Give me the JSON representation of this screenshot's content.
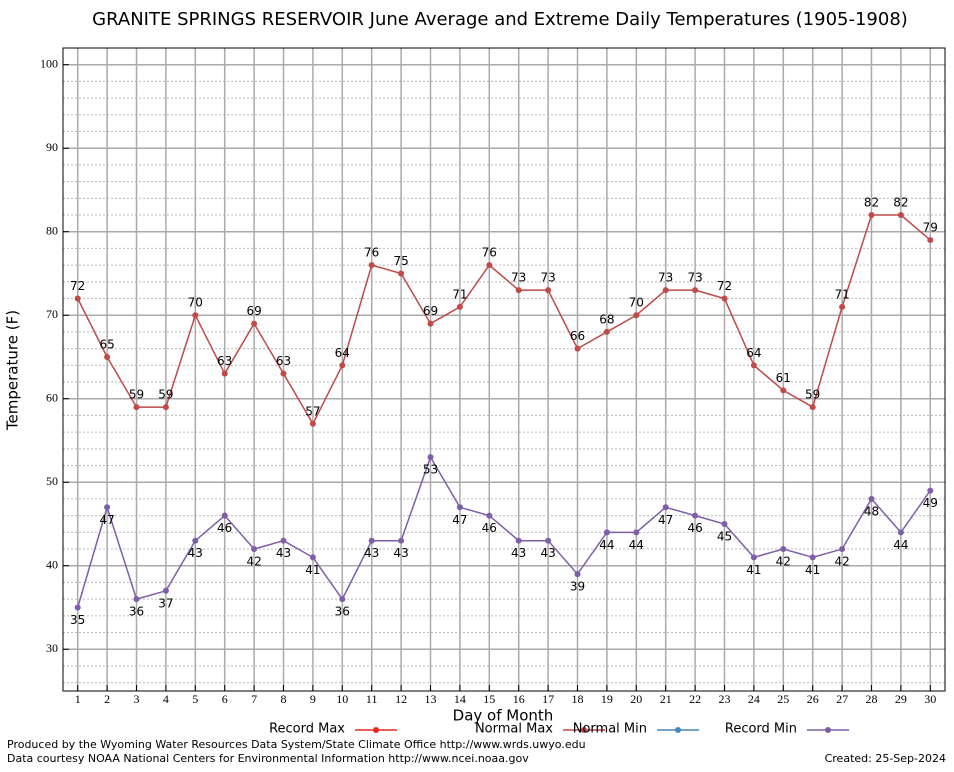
{
  "chart_data": {
    "type": "line",
    "title": "GRANITE SPRINGS RESERVOIR June Average and Extreme Daily Temperatures (1905-1908)",
    "x_label": "Day of Month",
    "y_label": "Temperature (F)",
    "x": [
      1,
      2,
      3,
      4,
      5,
      6,
      7,
      8,
      9,
      10,
      11,
      12,
      13,
      14,
      15,
      16,
      17,
      18,
      19,
      20,
      21,
      22,
      23,
      24,
      25,
      26,
      27,
      28,
      29,
      30
    ],
    "series": [
      {
        "name": "Record Max",
        "color": "#e8281e",
        "values": [
          null,
          null,
          null,
          null,
          null,
          null,
          null,
          null,
          null,
          null,
          null,
          null,
          null,
          null,
          null,
          null,
          null,
          null,
          null,
          null,
          null,
          null,
          null,
          null,
          null,
          null,
          null,
          null,
          null,
          null
        ]
      },
      {
        "name": "Normal Max",
        "color": "#bf4a48",
        "label_side": "above",
        "values": [
          72,
          65,
          59,
          59,
          70,
          63,
          69,
          63,
          57,
          64,
          76,
          75,
          69,
          71,
          76,
          73,
          73,
          66,
          68,
          70,
          73,
          73,
          72,
          64,
          61,
          59,
          71,
          82,
          82,
          79
        ]
      },
      {
        "name": "Normal Min",
        "color": "#4a86b8",
        "values": [
          null,
          null,
          null,
          null,
          null,
          null,
          null,
          null,
          null,
          null,
          null,
          null,
          null,
          null,
          null,
          null,
          null,
          null,
          null,
          null,
          null,
          null,
          null,
          null,
          null,
          null,
          null,
          null,
          null,
          null
        ]
      },
      {
        "name": "Record Min",
        "color": "#7e5ea8",
        "label_side": "below",
        "values": [
          35,
          47,
          36,
          37,
          43,
          46,
          42,
          43,
          41,
          36,
          43,
          43,
          53,
          47,
          46,
          43,
          43,
          39,
          44,
          44,
          47,
          46,
          45,
          41,
          42,
          41,
          42,
          48,
          44,
          49
        ]
      }
    ],
    "xlim": [
      0.5,
      30.5
    ],
    "ylim": [
      25,
      102
    ],
    "xticks": [
      1,
      2,
      3,
      4,
      5,
      6,
      7,
      8,
      9,
      10,
      11,
      12,
      13,
      14,
      15,
      16,
      17,
      18,
      19,
      20,
      21,
      22,
      23,
      24,
      25,
      26,
      27,
      28,
      29,
      30
    ],
    "yticks": [
      30,
      40,
      50,
      60,
      70,
      80,
      90,
      100
    ],
    "yminorticks": [
      26,
      28,
      32,
      34,
      36,
      38,
      42,
      44,
      46,
      48,
      52,
      54,
      56,
      58,
      62,
      64,
      66,
      68,
      72,
      74,
      76,
      78,
      82,
      84,
      86,
      88,
      92,
      94,
      96,
      98
    ],
    "grid": true,
    "legend": "bottom",
    "footer_left": [
      "Produced by the Wyoming Water Resources Data System/State Climate Office http://www.wrds.uwyo.edu",
      "Data courtesy NOAA National Centers for Environmental Information http://www.ncei.noaa.gov"
    ],
    "footer_right": "Created:  25-Sep-2024"
  }
}
